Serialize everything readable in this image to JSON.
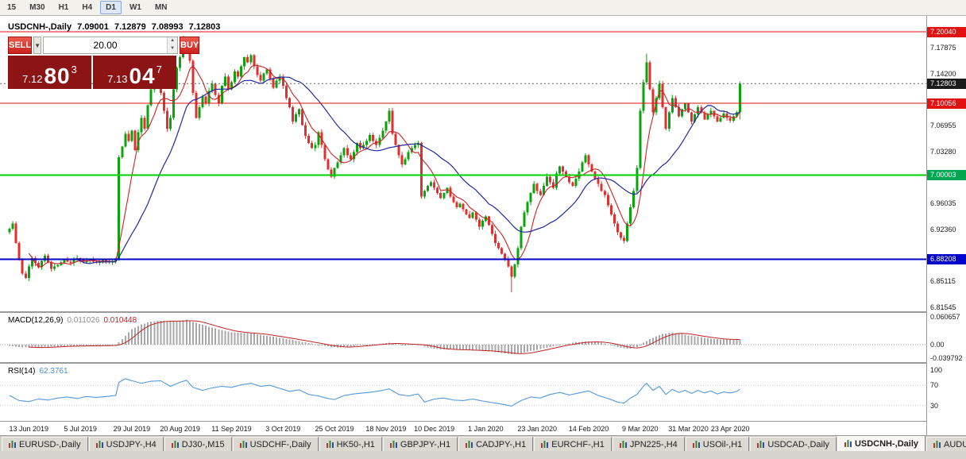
{
  "colors": {
    "button_red": "#c8221b",
    "button_red_highlight": "#ee5a4e",
    "quote_dark_red": "#8c1414"
  },
  "toolbar": {
    "timeframes": [
      "15",
      "M30",
      "H1",
      "H4",
      "D1",
      "W1",
      "MN"
    ],
    "active_timeframe": "D1"
  },
  "chart_header": {
    "symbol": "USDCNH-,Daily",
    "open": "7.09001",
    "high": "7.12879",
    "low": "7.08993",
    "close": "7.12803"
  },
  "trade_panel": {
    "sell_label": "SELL",
    "buy_label": "BUY",
    "volume": "20.00",
    "dropdown_icon": "▼",
    "spin_up_icon": "▲",
    "spin_down_icon": "▼",
    "bid_small": "7.12",
    "bid_big": "80",
    "bid_sup": "3",
    "ask_small": "7.13",
    "ask_big": "04",
    "ask_sup": "7"
  },
  "price_axis": {
    "plain_ticks": [
      {
        "label": "7.17875",
        "price": 7.17875
      },
      {
        "label": "7.14200",
        "price": 7.142
      },
      {
        "label": "7.06955",
        "price": 7.06955
      },
      {
        "label": "7.03280",
        "price": 7.0328
      },
      {
        "label": "6.96035",
        "price": 6.96035
      },
      {
        "label": "6.92360",
        "price": 6.9236
      },
      {
        "label": "6.85115",
        "price": 6.85115
      },
      {
        "label": "6.81545",
        "price": 6.81545
      }
    ],
    "tags": [
      {
        "label": "7.20040",
        "price": 7.2004,
        "bg": "#e31212"
      },
      {
        "label": "7.12803",
        "price": 7.12803,
        "bg": "#1a1a1a"
      },
      {
        "label": "7.10056",
        "price": 7.10056,
        "bg": "#e31212"
      },
      {
        "label": "7.00003",
        "price": 7.00003,
        "bg": "#00a651"
      },
      {
        "label": "6.88208",
        "price": 6.88208,
        "bg": "#0000cc"
      }
    ]
  },
  "macd_panel": {
    "title": "MACD(12,26,9)",
    "value_main": "0.011026",
    "value_signal": "0.010448",
    "axis_labels": [
      {
        "label": "0.060657",
        "value": 0.060657
      },
      {
        "label": "0.00",
        "value": 0
      },
      {
        "label": "-0.039792",
        "value": -0.039792
      }
    ]
  },
  "rsi_panel": {
    "title": "RSI(14)",
    "value": "62.3761",
    "axis_labels": [
      {
        "label": "100",
        "value": 100
      },
      {
        "label": "70",
        "value": 70
      },
      {
        "label": "30",
        "value": 30
      }
    ]
  },
  "date_axis": [
    {
      "label": "13 Jun 2019",
      "index": 6
    },
    {
      "label": "5 Jul 2019",
      "index": 22
    },
    {
      "label": "29 Jul 2019",
      "index": 38
    },
    {
      "label": "20 Aug 2019",
      "index": 53
    },
    {
      "label": "11 Sep 2019",
      "index": 69
    },
    {
      "label": "3 Oct 2019",
      "index": 85
    },
    {
      "label": "25 Oct 2019",
      "index": 101
    },
    {
      "label": "18 Nov 2019",
      "index": 117
    },
    {
      "label": "10 Dec 2019",
      "index": 132
    },
    {
      "label": "1 Jan 2020",
      "index": 148
    },
    {
      "label": "23 Jan 2020",
      "index": 164
    },
    {
      "label": "14 Feb 2020",
      "index": 180
    },
    {
      "label": "9 Mar 2020",
      "index": 196
    },
    {
      "label": "31 Mar 2020",
      "index": 211
    },
    {
      "label": "23 Apr 2020",
      "index": 224
    }
  ],
  "bottom_tabs": [
    {
      "label": "EURUSD-,Daily",
      "active": false
    },
    {
      "label": "USDJPY-,H4",
      "active": false
    },
    {
      "label": "DJ30-,M15",
      "active": false
    },
    {
      "label": "USDCHF-,Daily",
      "active": false
    },
    {
      "label": "HK50-,H1",
      "active": false
    },
    {
      "label": "GBPJPY-,H1",
      "active": false
    },
    {
      "label": "CADJPY-,H1",
      "active": false
    },
    {
      "label": "EURCHF-,H1",
      "active": false
    },
    {
      "label": "JPN225-,H4",
      "active": false
    },
    {
      "label": "USOil-,H1",
      "active": false
    },
    {
      "label": "USDCAD-,Daily",
      "active": false
    },
    {
      "label": "USDCNH-,Daily",
      "active": true
    },
    {
      "label": "AUDU",
      "active": false
    }
  ],
  "chart_data": {
    "type": "candlestick",
    "symbol": "USDCNH",
    "timeframe": "Daily",
    "x_range": [
      "13 Jun 2019",
      "23 Apr 2020"
    ],
    "y_range": [
      6.814,
      7.216
    ],
    "up_color": "#0ba30b",
    "down_color": "#e03131",
    "ma_fast_period": 7,
    "ma_fast_color": "#cc2222",
    "ma_slow_period": 22,
    "ma_slow_color": "#202a9e",
    "macd_bar_color": "#a8a8a8",
    "macd_signal_color": "#c22424",
    "rsi_color": "#5599dd",
    "rsi_levels": [
      70,
      30
    ],
    "current_price": 7.12803,
    "hlines": [
      {
        "price": 7.2004,
        "color": "#e31212",
        "width": 1
      },
      {
        "price": 7.10056,
        "color": "#e31212",
        "width": 1
      },
      {
        "price": 7.00003,
        "color": "#00d000",
        "width": 2
      },
      {
        "price": 6.88208,
        "color": "#0000cc",
        "width": 2
      }
    ],
    "closes": [
      6.925,
      6.932,
      6.905,
      6.882,
      6.862,
      6.856,
      6.872,
      6.884,
      6.877,
      6.871,
      6.88,
      6.887,
      6.878,
      6.869,
      6.872,
      6.874,
      6.878,
      6.881,
      6.879,
      6.877,
      6.881,
      6.884,
      6.881,
      6.878,
      6.88,
      6.882,
      6.879,
      6.877,
      6.879,
      6.881,
      6.879,
      6.878,
      6.88,
      6.882,
      7.025,
      7.04,
      7.058,
      7.048,
      7.062,
      7.035,
      7.06,
      7.08,
      7.065,
      7.098,
      7.12,
      7.135,
      7.125,
      7.115,
      7.09,
      7.065,
      7.08,
      7.12,
      7.15,
      7.165,
      7.185,
      7.175,
      7.16,
      7.115,
      7.08,
      7.095,
      7.11,
      7.1,
      7.118,
      7.128,
      7.112,
      7.1,
      7.125,
      7.138,
      7.12,
      7.13,
      7.145,
      7.138,
      7.152,
      7.165,
      7.158,
      7.168,
      7.152,
      7.14,
      7.132,
      7.142,
      7.148,
      7.135,
      7.122,
      7.132,
      7.138,
      7.125,
      7.108,
      7.095,
      7.075,
      7.085,
      7.092,
      7.07,
      7.055,
      7.045,
      7.038,
      7.042,
      7.06,
      7.042,
      7.022,
      7.008,
      6.998,
      7.01,
      7.018,
      7.028,
      7.038,
      7.028,
      7.022,
      7.032,
      7.045,
      7.038,
      7.042,
      7.048,
      7.056,
      7.048,
      7.042,
      7.052,
      7.062,
      7.075,
      7.09,
      7.058,
      7.042,
      7.028,
      7.015,
      7.022,
      7.032,
      7.038,
      7.042,
      7.045,
      6.97,
      6.978,
      6.985,
      6.99,
      6.982,
      6.975,
      6.968,
      6.975,
      6.982,
      6.97,
      6.962,
      6.955,
      6.96,
      6.952,
      6.945,
      6.94,
      6.948,
      6.938,
      6.928,
      6.936,
      6.942,
      6.93,
      6.918,
      6.905,
      6.898,
      6.89,
      6.882,
      6.872,
      6.858,
      6.875,
      6.898,
      6.928,
      6.948,
      6.962,
      6.975,
      6.988,
      6.978,
      6.972,
      6.985,
      6.998,
      6.99,
      6.982,
      7.002,
      7.012,
      7.005,
      6.998,
      6.99,
      6.985,
      6.995,
      7.005,
      7.018,
      7.028,
      7.015,
      7.005,
      6.995,
      6.988,
      6.978,
      6.972,
      6.958,
      6.945,
      6.932,
      6.92,
      6.912,
      6.908,
      6.932,
      6.955,
      6.978,
      7.01,
      7.09,
      7.13,
      7.158,
      7.12,
      7.088,
      7.108,
      7.128,
      7.095,
      7.065,
      7.088,
      7.108,
      7.095,
      7.082,
      7.092,
      7.1,
      7.088,
      7.075,
      7.085,
      7.095,
      7.088,
      7.078,
      7.085,
      7.09,
      7.082,
      7.075,
      7.08,
      7.086,
      7.08,
      7.076,
      7.082,
      7.088,
      7.128
    ],
    "wick_overrides": {
      "54": {
        "high": 7.195
      },
      "156": {
        "low": 6.836
      },
      "198": {
        "high": 7.17
      },
      "227": {
        "high": 7.131,
        "low": 7.078
      }
    },
    "macd_anchors": [
      [
        0,
        -0.003
      ],
      [
        6,
        -0.007
      ],
      [
        12,
        -0.005
      ],
      [
        18,
        -0.003
      ],
      [
        24,
        -0.0025
      ],
      [
        30,
        -0.002
      ],
      [
        33,
        -0.001
      ],
      [
        35,
        0.012
      ],
      [
        38,
        0.034
      ],
      [
        41,
        0.044
      ],
      [
        44,
        0.05
      ],
      [
        47,
        0.052
      ],
      [
        50,
        0.05
      ],
      [
        53,
        0.052
      ],
      [
        55,
        0.054
      ],
      [
        58,
        0.047
      ],
      [
        61,
        0.041
      ],
      [
        65,
        0.033
      ],
      [
        69,
        0.027
      ],
      [
        73,
        0.025
      ],
      [
        76,
        0.024
      ],
      [
        80,
        0.019
      ],
      [
        84,
        0.015
      ],
      [
        88,
        0.01
      ],
      [
        92,
        0.005
      ],
      [
        96,
        0.0
      ],
      [
        100,
        -0.005
      ],
      [
        103,
        -0.006
      ],
      [
        106,
        -0.004
      ],
      [
        110,
        -0.001
      ],
      [
        114,
        0.001
      ],
      [
        118,
        0.004
      ],
      [
        122,
        0.0
      ],
      [
        126,
        0.001
      ],
      [
        128,
        -0.002
      ],
      [
        131,
        -0.008
      ],
      [
        134,
        -0.01
      ],
      [
        138,
        -0.011
      ],
      [
        142,
        -0.012
      ],
      [
        146,
        -0.013
      ],
      [
        150,
        -0.015
      ],
      [
        154,
        -0.019
      ],
      [
        157,
        -0.021
      ],
      [
        160,
        -0.017
      ],
      [
        164,
        -0.011
      ],
      [
        168,
        -0.005
      ],
      [
        172,
        0.001
      ],
      [
        176,
        0.005
      ],
      [
        180,
        0.007
      ],
      [
        184,
        0.004
      ],
      [
        187,
        -0.001
      ],
      [
        190,
        -0.007
      ],
      [
        193,
        -0.009
      ],
      [
        195,
        -0.005
      ],
      [
        197,
        0.004
      ],
      [
        199,
        0.012
      ],
      [
        201,
        0.018
      ],
      [
        203,
        0.023
      ],
      [
        205,
        0.026
      ],
      [
        207,
        0.025
      ],
      [
        209,
        0.023
      ],
      [
        211,
        0.02
      ],
      [
        213,
        0.018
      ],
      [
        215,
        0.016
      ],
      [
        217,
        0.014
      ],
      [
        219,
        0.012
      ],
      [
        221,
        0.0115
      ],
      [
        224,
        0.011
      ],
      [
        227,
        0.011026
      ]
    ],
    "rsi_anchors": [
      [
        0,
        50
      ],
      [
        3,
        40
      ],
      [
        6,
        38
      ],
      [
        9,
        43
      ],
      [
        12,
        41
      ],
      [
        15,
        45
      ],
      [
        18,
        47
      ],
      [
        21,
        44
      ],
      [
        24,
        48
      ],
      [
        27,
        46
      ],
      [
        30,
        48
      ],
      [
        33,
        50
      ],
      [
        34,
        76
      ],
      [
        36,
        83
      ],
      [
        38,
        79
      ],
      [
        41,
        74
      ],
      [
        44,
        78
      ],
      [
        47,
        79
      ],
      [
        50,
        68
      ],
      [
        53,
        76
      ],
      [
        55,
        80
      ],
      [
        57,
        66
      ],
      [
        60,
        60
      ],
      [
        63,
        65
      ],
      [
        66,
        68
      ],
      [
        69,
        66
      ],
      [
        72,
        71
      ],
      [
        75,
        74
      ],
      [
        78,
        68
      ],
      [
        81,
        70
      ],
      [
        84,
        64
      ],
      [
        87,
        58
      ],
      [
        90,
        61
      ],
      [
        93,
        52
      ],
      [
        96,
        49
      ],
      [
        99,
        44
      ],
      [
        101,
        42
      ],
      [
        104,
        50
      ],
      [
        107,
        53
      ],
      [
        110,
        55
      ],
      [
        113,
        57
      ],
      [
        116,
        60
      ],
      [
        118,
        63
      ],
      [
        121,
        52
      ],
      [
        124,
        49
      ],
      [
        127,
        53
      ],
      [
        129,
        37
      ],
      [
        132,
        43
      ],
      [
        135,
        45
      ],
      [
        138,
        41
      ],
      [
        141,
        40
      ],
      [
        144,
        43
      ],
      [
        147,
        39
      ],
      [
        150,
        36
      ],
      [
        153,
        33
      ],
      [
        156,
        29
      ],
      [
        159,
        40
      ],
      [
        162,
        47
      ],
      [
        165,
        45
      ],
      [
        168,
        52
      ],
      [
        171,
        56
      ],
      [
        174,
        51
      ],
      [
        177,
        55
      ],
      [
        180,
        59
      ],
      [
        183,
        50
      ],
      [
        186,
        44
      ],
      [
        189,
        37
      ],
      [
        191,
        35
      ],
      [
        193,
        45
      ],
      [
        195,
        52
      ],
      [
        197,
        68
      ],
      [
        198,
        74
      ],
      [
        200,
        60
      ],
      [
        202,
        68
      ],
      [
        204,
        52
      ],
      [
        206,
        62
      ],
      [
        208,
        56
      ],
      [
        210,
        60
      ],
      [
        212,
        54
      ],
      [
        214,
        60
      ],
      [
        216,
        55
      ],
      [
        218,
        59
      ],
      [
        220,
        53
      ],
      [
        222,
        57
      ],
      [
        224,
        55
      ],
      [
        226,
        58
      ],
      [
        227,
        62.38
      ]
    ]
  }
}
